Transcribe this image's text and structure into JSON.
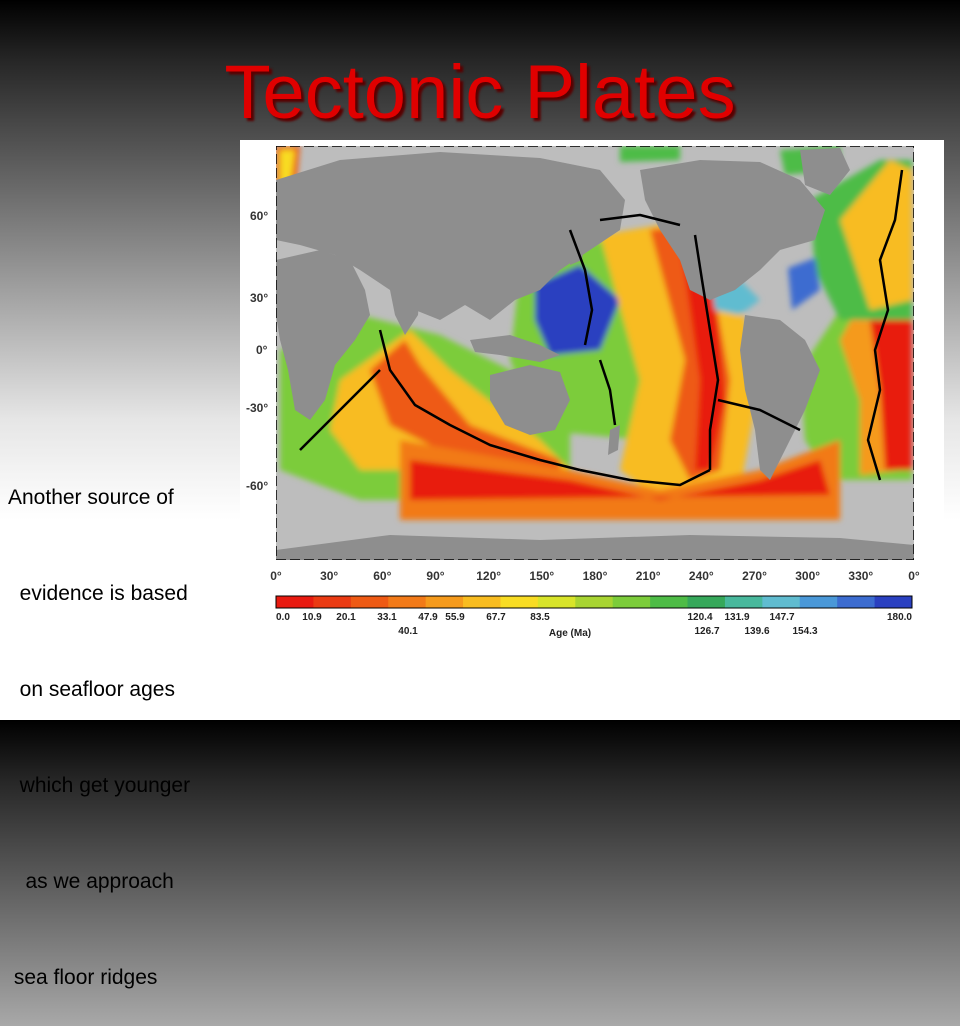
{
  "slide": {
    "title": "Tectonic Plates",
    "body_lines": [
      "Another source of",
      "  evidence is based",
      "  on seafloor ages",
      "  which get younger",
      "   as we approach",
      " sea floor ridges"
    ]
  },
  "map": {
    "lat_labels": [
      "60°",
      "30°",
      "0°",
      "-30°",
      "-60°"
    ],
    "lon_labels": [
      "0°",
      "30°",
      "60°",
      "90°",
      "120°",
      "150°",
      "180°",
      "210°",
      "240°",
      "270°",
      "300°",
      "330°",
      "0°"
    ],
    "legend": {
      "title": "Age (Ma)",
      "top_values": [
        "0.0",
        "10.9",
        "20.1",
        "33.1",
        "47.9",
        "55.9",
        "67.7",
        "83.5",
        "120.4",
        "131.9",
        "147.7",
        "180.0"
      ],
      "bottom_values": [
        "40.1",
        "126.7",
        "139.6",
        "154.3"
      ],
      "colors": [
        "#e81a10",
        "#ea3a12",
        "#ee5a14",
        "#f27a18",
        "#f59a1c",
        "#f8bc20",
        "#f8dc24",
        "#d8e42a",
        "#a8d432",
        "#7ccc3a",
        "#4ebc46",
        "#36a85a",
        "#48b89c",
        "#60bcd0",
        "#4a98d8",
        "#3c6cd0",
        "#2a40c0"
      ]
    },
    "colors": {
      "land": "#8e8e8e",
      "shelf": "#bdbdbd",
      "ridge": "#000000",
      "young": "#e81a10",
      "old": "#2a40c0"
    }
  }
}
